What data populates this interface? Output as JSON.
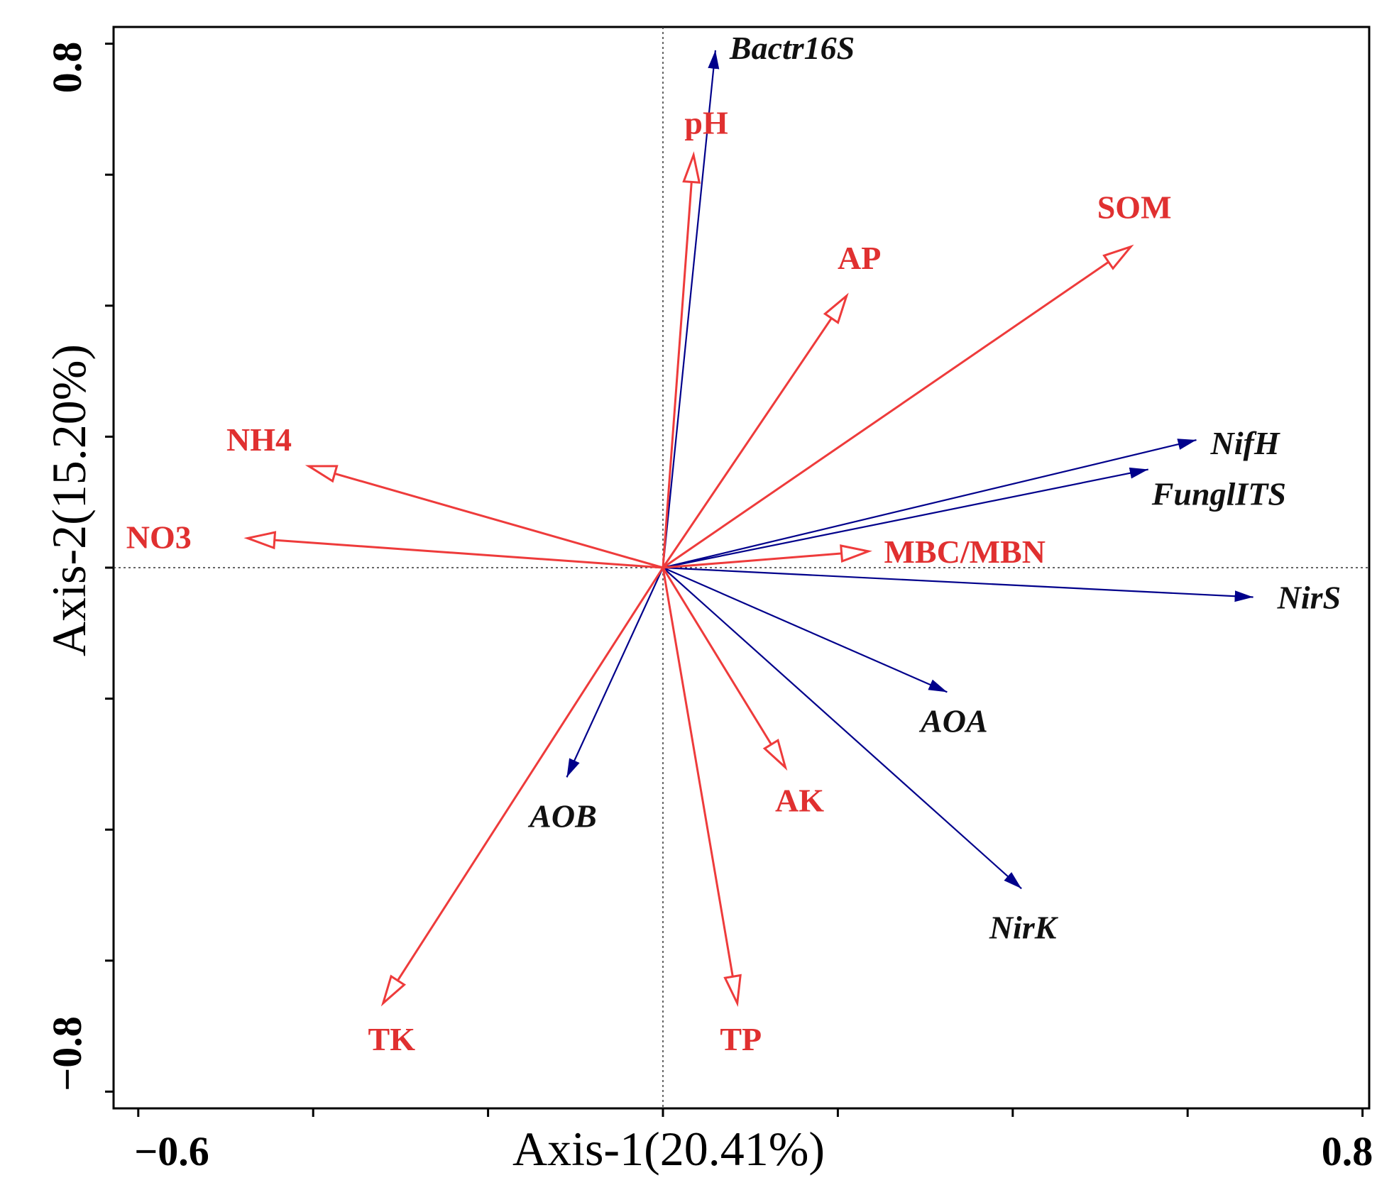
{
  "chart_data": {
    "type": "biplot",
    "x_axis": {
      "title": "Axis-1(20.41%)",
      "range": [
        -0.6,
        0.8
      ],
      "tick_labels": [
        "−0.6",
        "0.8"
      ],
      "minor_ticks": [
        -0.6,
        -0.4,
        -0.2,
        0.0,
        0.2,
        0.4,
        0.6,
        0.8
      ]
    },
    "y_axis": {
      "title": "Axis-2(15.20%)",
      "range": [
        -0.8,
        0.8
      ],
      "tick_labels": [
        "0.8",
        "−0.8"
      ],
      "minor_ticks": [
        -0.8,
        -0.6,
        -0.4,
        -0.2,
        0.0,
        0.2,
        0.4,
        0.6,
        0.8
      ]
    },
    "reference_lines": {
      "x": 0.0,
      "y": 0.0,
      "style": "dotted"
    },
    "colors": {
      "environmental": "#ee3b3b",
      "environmental_text": "#e03030",
      "species": "#00008b",
      "species_text": "#111111",
      "frame": "#000000"
    },
    "environmental_vectors": [
      {
        "name": "pH",
        "x": 0.035,
        "y": 0.63
      },
      {
        "name": "SOM",
        "x": 0.535,
        "y": 0.49
      },
      {
        "name": "AP",
        "x": 0.21,
        "y": 0.415
      },
      {
        "name": "NH4",
        "x": -0.405,
        "y": 0.155
      },
      {
        "name": "NO3",
        "x": -0.475,
        "y": 0.045
      },
      {
        "name": "MBC/MBN",
        "x": 0.235,
        "y": 0.025
      },
      {
        "name": "AK",
        "x": 0.14,
        "y": -0.305
      },
      {
        "name": "TK",
        "x": -0.32,
        "y": -0.665
      },
      {
        "name": "TP",
        "x": 0.085,
        "y": -0.665
      }
    ],
    "species_vectors": [
      {
        "name": "Bactr16S",
        "x": 0.06,
        "y": 0.79
      },
      {
        "name": "NifH",
        "x": 0.61,
        "y": 0.195
      },
      {
        "name": "FunglITS",
        "x": 0.555,
        "y": 0.15
      },
      {
        "name": "NirS",
        "x": 0.675,
        "y": -0.045
      },
      {
        "name": "AOA",
        "x": 0.325,
        "y": -0.19
      },
      {
        "name": "NirK",
        "x": 0.41,
        "y": -0.49
      },
      {
        "name": "AOB",
        "x": -0.11,
        "y": -0.32
      }
    ]
  }
}
